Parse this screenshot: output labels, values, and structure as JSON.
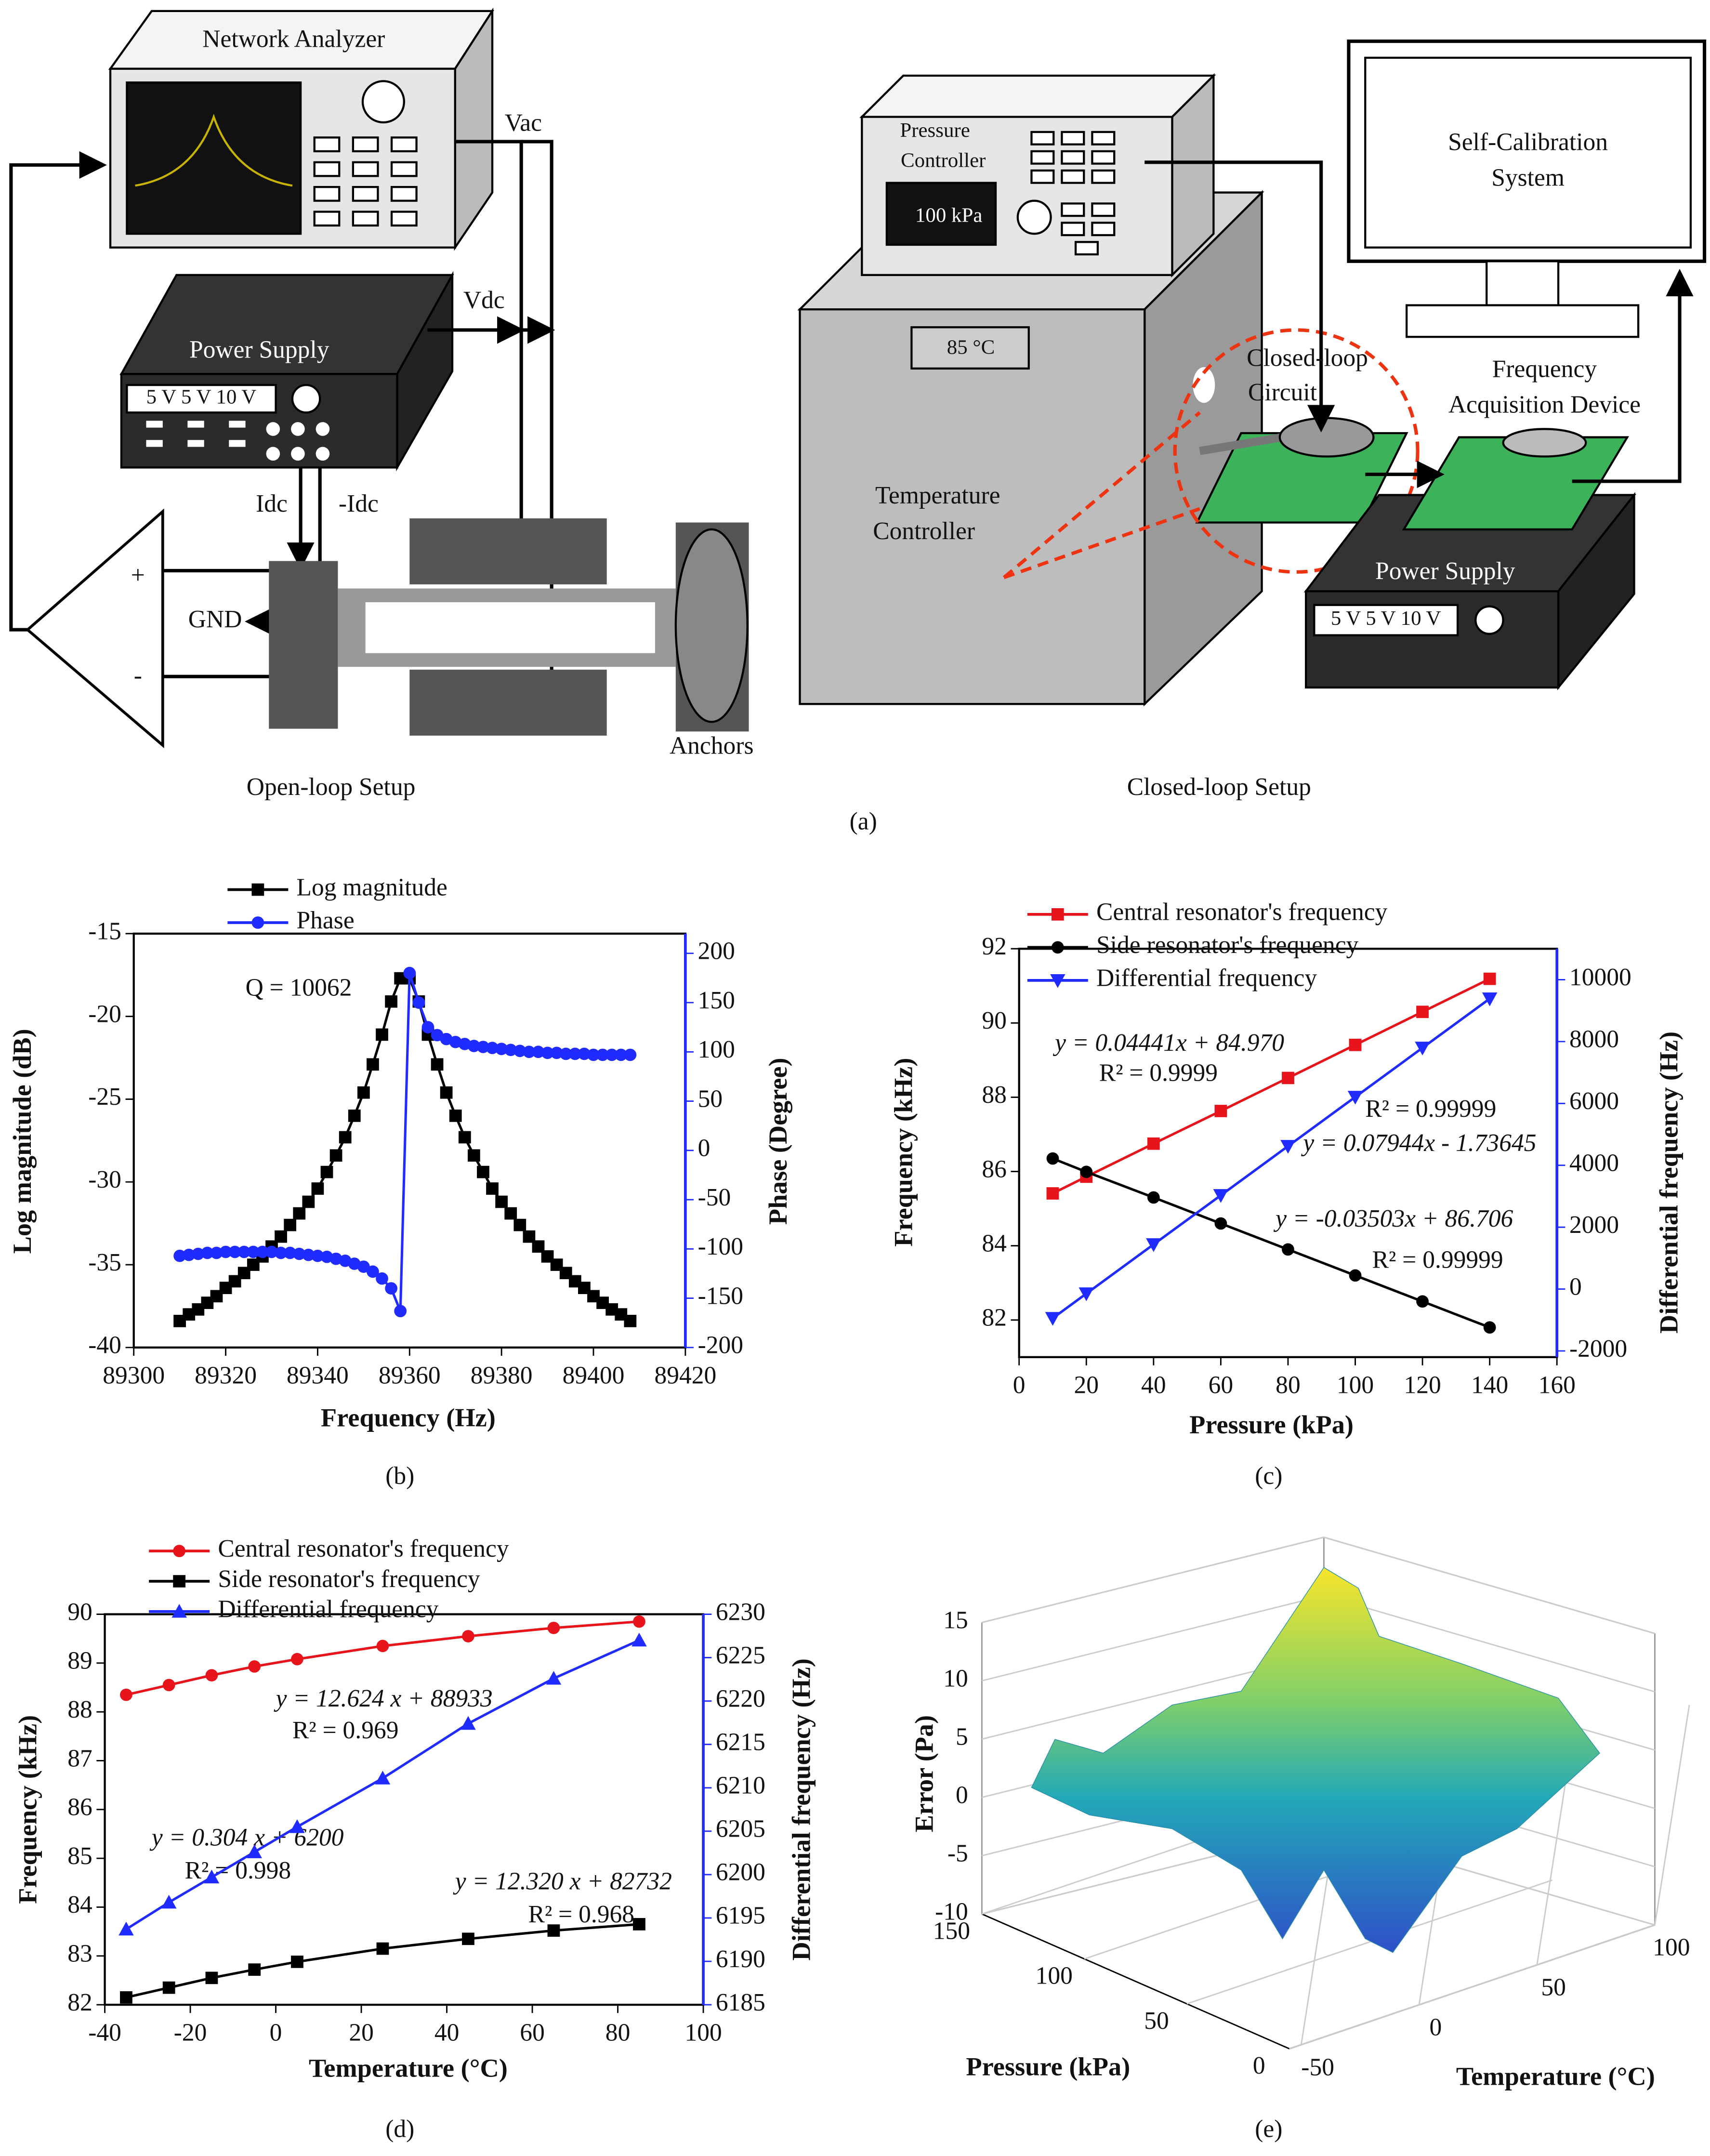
{
  "diagram": {
    "network_analyzer": "Network Analyzer",
    "vac": "Vac",
    "vdc": "Vdc",
    "power_supply": "Power Supply",
    "voltages": "5 V  5 V  10 V",
    "idc": "Idc",
    "neg_idc": "-Idc",
    "plus": "+",
    "minus": "-",
    "gnd": "GND",
    "anchors": "Anchors",
    "open_loop": "Open-loop Setup",
    "pressure_controller": [
      "Pressure",
      "Controller"
    ],
    "pressure_value": "100 kPa",
    "temperature_value": "85 °C",
    "temperature_controller": [
      "Temperature",
      "Controller"
    ],
    "closed_loop_circuit": [
      "Closed-loop",
      "Circuit"
    ],
    "self_calibration": [
      "Self-Calibration",
      "System"
    ],
    "acquisition": [
      "Frequency",
      "Acquisition Device"
    ],
    "power_supply_2": "Power Supply",
    "voltages_2": "5 V  5 V  10 V",
    "closed_loop": "Closed-loop Setup",
    "label": "(a)"
  },
  "chart_data": [
    {
      "type": "line",
      "label": "(b)",
      "x_label": "Frequency (Hz)",
      "y_label": "Log magnitude (dB)",
      "y2_label": "Phase (Degree)",
      "annotations": [
        "Q = 10062"
      ],
      "x": [
        89310,
        89312,
        89314,
        89316,
        89318,
        89320,
        89322,
        89324,
        89326,
        89328,
        89330,
        89332,
        89334,
        89336,
        89338,
        89340,
        89342,
        89344,
        89346,
        89348,
        89350,
        89352,
        89354,
        89356,
        89358,
        89360,
        89362,
        89364,
        89366,
        89368,
        89370,
        89372,
        89374,
        89376,
        89378,
        89380,
        89382,
        89384,
        89386,
        89388,
        89390,
        89392,
        89394,
        89396,
        89398,
        89400,
        89402,
        89404,
        89406,
        89408
      ],
      "series": [
        {
          "name": "Log magnitude",
          "color": "#000000",
          "marker": "square",
          "values": [
            -38.4,
            -38.0,
            -37.7,
            -37.3,
            -36.9,
            -36.4,
            -36.0,
            -35.5,
            -35.0,
            -34.5,
            -33.9,
            -33.3,
            -32.6,
            -31.9,
            -31.2,
            -30.4,
            -29.4,
            -28.4,
            -27.3,
            -26.0,
            -24.6,
            -22.9,
            -21.1,
            -19.1,
            -17.7,
            -17.7,
            -19.1,
            -21.1,
            -22.9,
            -24.6,
            -26.0,
            -27.3,
            -28.4,
            -29.4,
            -30.4,
            -31.2,
            -31.9,
            -32.6,
            -33.3,
            -33.9,
            -34.5,
            -35.0,
            -35.5,
            -36.0,
            -36.4,
            -36.9,
            -37.3,
            -37.7,
            -38.0,
            -38.4
          ]
        },
        {
          "name": "Phase",
          "color": "#1f2bff",
          "marker": "circle",
          "axis": "y2",
          "values": [
            -107,
            -106,
            -105,
            -104,
            -104,
            -103,
            -103,
            -103,
            -103,
            -103,
            -103,
            -104,
            -104,
            -105,
            -106,
            -107,
            -108,
            -110,
            -112,
            -115,
            -118,
            -123,
            -130,
            -140,
            -163,
            180,
            150,
            125,
            117,
            113,
            110,
            108,
            106,
            105,
            104,
            103,
            102,
            101,
            100,
            100,
            99,
            99,
            98,
            98,
            98,
            97,
            97,
            97,
            97,
            97
          ]
        }
      ],
      "xlim": [
        89300,
        89420
      ],
      "xticks": [
        89300,
        89320,
        89340,
        89360,
        89380,
        89400,
        89420
      ],
      "ylim": [
        -40,
        -15
      ],
      "yticks": [
        -40,
        -35,
        -30,
        -25,
        -20,
        -15
      ],
      "y2lim": [
        -200,
        220
      ],
      "y2ticks": [
        -200,
        -150,
        -100,
        -50,
        0,
        50,
        100,
        150,
        200
      ]
    },
    {
      "type": "line",
      "label": "(c)",
      "x_label": "Pressure (kPa)",
      "y_label": "Frequency (kHz)",
      "y2_label": "Differential frequency (Hz)",
      "annotations": [
        "y = 0.04441x + 84.970",
        "R² = 0.9999",
        "R² = 0.99999",
        "y = 0.07944x - 1.73645",
        "y = -0.03503x + 86.706",
        "R² = 0.99999"
      ],
      "x": [
        10,
        20,
        40,
        60,
        80,
        100,
        120,
        140
      ],
      "series": [
        {
          "name": "Central resonator's frequency",
          "color": "#e8141b",
          "marker": "square",
          "values": [
            85.41,
            85.86,
            86.75,
            87.63,
            88.52,
            89.41,
            90.3,
            91.19
          ]
        },
        {
          "name": "Side  resonator's frequency",
          "color": "#000000",
          "marker": "circle",
          "values": [
            86.35,
            85.99,
            85.3,
            84.6,
            83.9,
            83.2,
            82.5,
            81.8
          ]
        },
        {
          "name": "Differential frequency",
          "color": "#1f2bff",
          "marker": "triangle-down",
          "axis": "y2",
          "values": [
            -942,
            -147,
            1442,
            3030,
            4619,
            6208,
            7797,
            9386
          ]
        }
      ],
      "xlim": [
        0,
        160
      ],
      "xticks": [
        0,
        20,
        40,
        60,
        80,
        100,
        120,
        140,
        160
      ],
      "ylim": [
        81,
        92
      ],
      "yticks": [
        82,
        84,
        86,
        88,
        90,
        92
      ],
      "y2lim": [
        -2200,
        11000
      ],
      "y2ticks": [
        -2000,
        0,
        2000,
        4000,
        6000,
        8000,
        10000
      ]
    },
    {
      "type": "line",
      "label": "(d)",
      "x_label": "Temperature (°C)",
      "y_label": "Frequency (kHz)",
      "y2_label": "Differential frequency (Hz)",
      "annotations": [
        "y = 12.624 x + 88933",
        "R² = 0.969",
        "y = 0.304 x + 6200",
        "R² = 0.998",
        "y = 12.320 x + 82732",
        "R² = 0.968"
      ],
      "x": [
        -35,
        -25,
        -15,
        -5,
        5,
        25,
        45,
        65,
        85
      ],
      "series": [
        {
          "name": "Central resonator's frequency",
          "color": "#e8141b",
          "marker": "circle",
          "values": [
            88.35,
            88.55,
            88.75,
            88.93,
            89.08,
            89.35,
            89.55,
            89.72,
            89.85
          ]
        },
        {
          "name": "Side resonator's frequency",
          "color": "#000000",
          "marker": "square",
          "values": [
            82.15,
            82.35,
            82.55,
            82.72,
            82.88,
            83.15,
            83.35,
            83.52,
            83.65
          ]
        },
        {
          "name": "Differential frequency",
          "color": "#1f2bff",
          "marker": "triangle-up",
          "axis": "y2",
          "values": [
            6193.7,
            6196.8,
            6199.7,
            6202.6,
            6205.5,
            6211.1,
            6217.4,
            6222.6,
            6227.0
          ]
        }
      ],
      "xlim": [
        -40,
        100
      ],
      "xticks": [
        -40,
        -20,
        0,
        20,
        40,
        60,
        80,
        100
      ],
      "ylim": [
        82,
        90
      ],
      "yticks": [
        82,
        83,
        84,
        85,
        86,
        87,
        88,
        89,
        90
      ],
      "y2lim": [
        6185,
        6230
      ],
      "y2ticks": [
        6185,
        6190,
        6195,
        6200,
        6205,
        6210,
        6215,
        6220,
        6225,
        6230
      ]
    },
    {
      "type": "surface",
      "label": "(e)",
      "x_label": "Temperature (°C)",
      "y_label": "Pressure (kPa)",
      "z_label": "Error (Pa)",
      "xlim": [
        -55,
        100
      ],
      "xticks": [
        -50,
        0,
        50,
        100
      ],
      "ylim": [
        0,
        150
      ],
      "yticks": [
        0,
        50,
        100,
        150
      ],
      "zlim": [
        -10,
        15
      ],
      "zticks": [
        -10,
        -5,
        0,
        5,
        10,
        15
      ]
    }
  ]
}
